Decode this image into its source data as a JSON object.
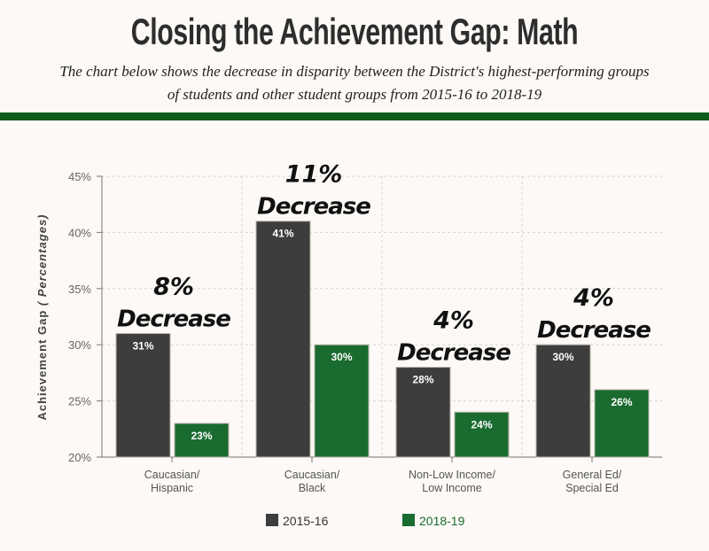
{
  "title": "Closing the Achievement Gap: Math",
  "subtitle": "The chart below shows the decrease in disparity between the District's highest-performing groups of students and other student groups from 2015-16 to 2018-19",
  "chart_data": {
    "type": "bar",
    "categories": [
      [
        "Caucasian/",
        "Hispanic"
      ],
      [
        "Caucasian/",
        "Black"
      ],
      [
        "Non-Low Income/",
        "Low Income"
      ],
      [
        "General Ed/",
        "Special Ed"
      ]
    ],
    "series": [
      {
        "name": "2015-16",
        "color": "#3e3d3d",
        "values": [
          31,
          41,
          28,
          30
        ],
        "labels": [
          "31%",
          "41%",
          "28%",
          "30%"
        ]
      },
      {
        "name": "2018-19",
        "color": "#1a6b2f",
        "values": [
          23,
          30,
          24,
          26
        ],
        "labels": [
          "23%",
          "30%",
          "24%",
          "26%"
        ]
      }
    ],
    "annotations": [
      [
        "8%",
        "Decrease"
      ],
      [
        "11%",
        "Decrease"
      ],
      [
        "4%",
        "Decrease"
      ],
      [
        "4%",
        "Decrease"
      ]
    ],
    "ylabel": "Achievement Gap",
    "ylabel_suffix": "( Percentages)",
    "ylim": [
      20,
      45
    ],
    "yticks": [
      "20%",
      "25%",
      "30%",
      "35%",
      "40%",
      "45%"
    ],
    "grid": true,
    "legend_position": "bottom"
  }
}
